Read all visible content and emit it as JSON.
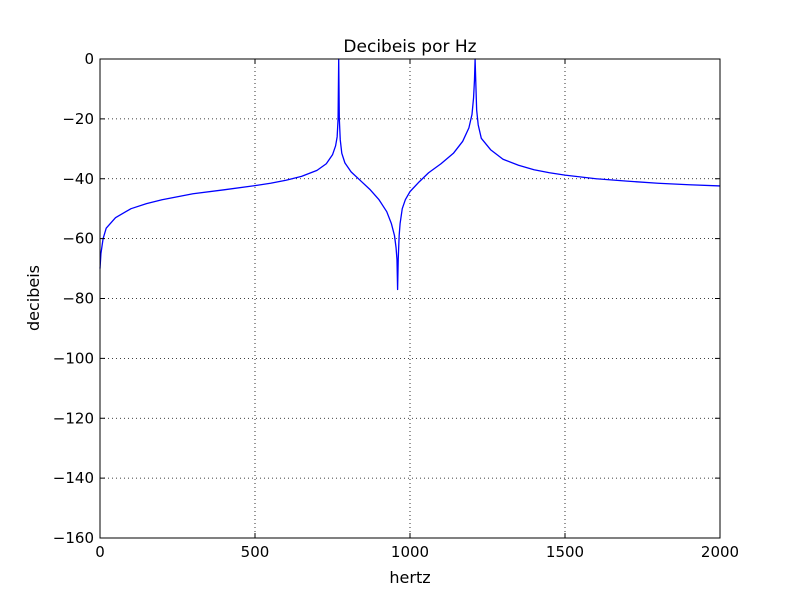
{
  "chart_data": {
    "type": "line",
    "title": "Decibeis por Hz",
    "xlabel": "hertz",
    "ylabel": "decibeis",
    "xlim": [
      0,
      2000
    ],
    "ylim": [
      -160,
      0
    ],
    "xticks": [
      0,
      500,
      1000,
      1500,
      2000
    ],
    "yticks": [
      0,
      -20,
      -40,
      -60,
      -80,
      -100,
      -120,
      -140,
      -160
    ],
    "xtick_labels": [
      "0",
      "500",
      "1000",
      "1500",
      "2000"
    ],
    "ytick_labels": [
      "0",
      "−20",
      "−40",
      "−60",
      "−80",
      "−100",
      "−120",
      "−140",
      "−160"
    ],
    "grid": true,
    "series": [
      {
        "color": "#0000ff",
        "x": [
          0,
          3,
          10,
          20,
          50,
          100,
          150,
          200,
          300,
          400,
          500,
          550,
          600,
          650,
          700,
          730,
          750,
          760,
          765,
          768,
          770,
          772,
          775,
          780,
          790,
          810,
          840,
          870,
          900,
          925,
          940,
          950,
          955,
          958,
          960,
          962,
          965,
          968,
          975,
          985,
          1000,
          1030,
          1060,
          1100,
          1140,
          1170,
          1190,
          1200,
          1205,
          1208,
          1210,
          1212,
          1215,
          1220,
          1230,
          1260,
          1300,
          1350,
          1400,
          1450,
          1500,
          1600,
          1700,
          1800,
          1900,
          2000
        ],
        "values": [
          -70,
          -65,
          -60,
          -56.5,
          -53,
          -50,
          -48.3,
          -47,
          -45,
          -43.7,
          -42.3,
          -41.5,
          -40.5,
          -39.2,
          -37.2,
          -35,
          -32,
          -29,
          -26,
          -20,
          0,
          -20,
          -27,
          -31.5,
          -34.7,
          -37.7,
          -40.6,
          -43.5,
          -47,
          -51,
          -55,
          -59,
          -63,
          -67,
          -77,
          -67,
          -59,
          -55,
          -50,
          -47,
          -44.3,
          -41,
          -38,
          -35,
          -31.5,
          -27.5,
          -23,
          -18.5,
          -13,
          -7,
          0,
          -7,
          -17,
          -22,
          -26.5,
          -30.3,
          -33.5,
          -35.5,
          -37,
          -38,
          -38.8,
          -40,
          -40.8,
          -41.5,
          -42,
          -42.4
        ]
      }
    ]
  }
}
